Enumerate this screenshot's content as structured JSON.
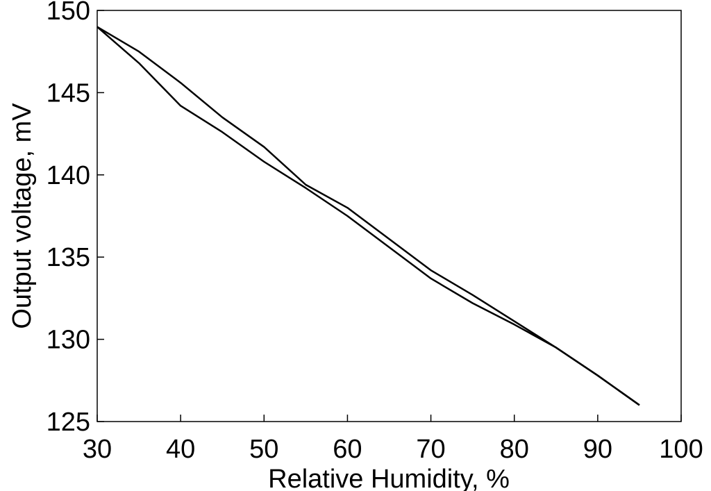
{
  "chart_data": {
    "type": "line",
    "x_label": "Relative Humidity, %",
    "y_label": "Output voltage, mV",
    "x": [
      30,
      35,
      40,
      45,
      50,
      55,
      60,
      65,
      70,
      75,
      80,
      85,
      90,
      95
    ],
    "series": [
      {
        "color": "#000000",
        "values": [
          149,
          147.5,
          145.6,
          143.5,
          141.7,
          139.4,
          138,
          136.1,
          134.2,
          132.7,
          131.1,
          129.5,
          127.8,
          126
        ]
      },
      {
        "color": "#000000",
        "values": [
          149,
          146.8,
          144.2,
          142.6,
          140.8,
          139.2,
          137.5,
          135.6,
          133.7,
          132.2,
          130.9,
          129.5,
          127.8,
          126
        ]
      }
    ],
    "xlim": [
      30,
      100
    ],
    "xticks": [
      30,
      40,
      50,
      60,
      70,
      80,
      90,
      100
    ],
    "ylim": [
      125,
      150
    ],
    "yticks": [
      125,
      130,
      135,
      140,
      145,
      150
    ],
    "grid": false
  }
}
